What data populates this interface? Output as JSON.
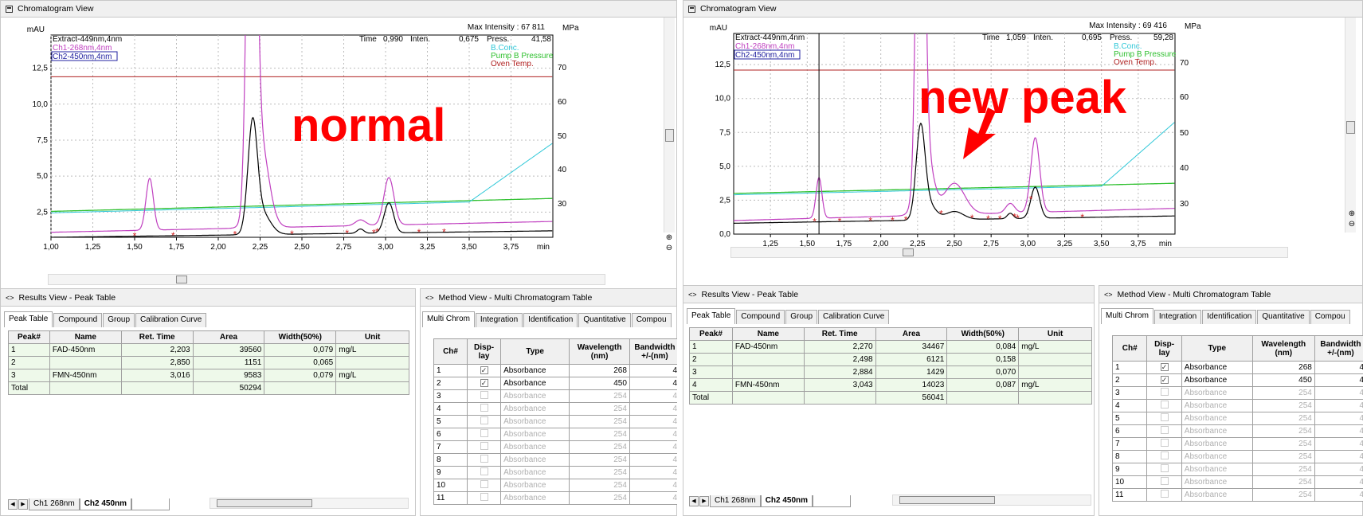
{
  "left": {
    "chrom_title": "Chromatogram View",
    "y_unit": "mAU",
    "legend": [
      "Extract-449nm,4nm",
      "Ch1-268nm,4nm",
      "Ch2-450nm,4nm"
    ],
    "legend_right": [
      "B.Conc.",
      "Pump B Pressure",
      "Oven Temp."
    ],
    "readout": {
      "time_label": "Time",
      "time": "0,990",
      "inten_label": "Inten.",
      "inten": "0,675",
      "press_label": "Press.",
      "press": "41,58"
    },
    "max_intensity": "Max Intensity :  67 811",
    "mpa": "MPa",
    "annotation": "normal",
    "results_title": "Results View - Peak Table",
    "tabs": [
      "Peak Table",
      "Compound",
      "Group",
      "Calibration Curve"
    ],
    "peak_headers": [
      "Peak#",
      "Name",
      "Ret. Time",
      "Area",
      "Width(50%)",
      "Unit"
    ],
    "peaks": [
      [
        "1",
        "FAD-450nm",
        "2,203",
        "39560",
        "0,079",
        "mg/L"
      ],
      [
        "2",
        "",
        "2,850",
        "1151",
        "0,065",
        ""
      ],
      [
        "3",
        "FMN-450nm",
        "3,016",
        "9583",
        "0,079",
        "mg/L"
      ],
      [
        "Total",
        "",
        "",
        "50294",
        "",
        ""
      ]
    ],
    "bottom_tabs": [
      "Ch1 268nm",
      "Ch2 450nm"
    ],
    "method_title": "Method View - Multi Chromatogram Table",
    "method_tabs": [
      "Multi Chrom",
      "Integration",
      "Identification",
      "Quantitative",
      "Compou"
    ]
  },
  "right": {
    "chrom_title": "Chromatogram View",
    "y_unit": "mAU",
    "legend": [
      "Extract-449nm,4nm",
      "Ch1-268nm,4nm",
      "Ch2-450nm,4nm"
    ],
    "legend_right": [
      "B.Conc.",
      "Pump B Pressure",
      "Oven Temp."
    ],
    "readout": {
      "time_label": "Time",
      "time": "1,059",
      "inten_label": "Inten.",
      "inten": "0,695",
      "press_label": "Press.",
      "press": "59,28"
    },
    "max_intensity": "Max Intensity :  69 416",
    "mpa": "MPa",
    "annotation": "new peak",
    "results_title": "Results View - Peak Table",
    "tabs": [
      "Peak Table",
      "Compound",
      "Group",
      "Calibration Curve"
    ],
    "peak_headers": [
      "Peak#",
      "Name",
      "Ret. Time",
      "Area",
      "Width(50%)",
      "Unit"
    ],
    "peaks": [
      [
        "1",
        "FAD-450nm",
        "2,270",
        "34467",
        "0,084",
        "mg/L"
      ],
      [
        "2",
        "",
        "2,498",
        "6121",
        "0,158",
        ""
      ],
      [
        "3",
        "",
        "2,884",
        "1429",
        "0,070",
        ""
      ],
      [
        "4",
        "FMN-450nm",
        "3,043",
        "14023",
        "0,087",
        "mg/L"
      ],
      [
        "Total",
        "",
        "",
        "56041",
        "",
        ""
      ]
    ],
    "bottom_tabs": [
      "Ch1 268nm",
      "Ch2 450nm"
    ],
    "method_title": "Method View - Multi Chromatogram Table",
    "method_tabs": [
      "Multi Chrom",
      "Integration",
      "Identification",
      "Quantitative",
      "Compou"
    ]
  },
  "method_headers": [
    "Ch#",
    "Disp-\nlay",
    "Type",
    "Wavelength\n(nm)",
    "Bandwidth\n+/-(nm)"
  ],
  "method_rows": [
    [
      "1",
      true,
      "Absorbance",
      "268",
      "4"
    ],
    [
      "2",
      true,
      "Absorbance",
      "450",
      "4"
    ],
    [
      "3",
      false,
      "Absorbance",
      "254",
      "4"
    ],
    [
      "4",
      false,
      "Absorbance",
      "254",
      "4"
    ],
    [
      "5",
      false,
      "Absorbance",
      "254",
      "4"
    ],
    [
      "6",
      false,
      "Absorbance",
      "254",
      "4"
    ],
    [
      "7",
      false,
      "Absorbance",
      "254",
      "4"
    ],
    [
      "8",
      false,
      "Absorbance",
      "254",
      "4"
    ],
    [
      "9",
      false,
      "Absorbance",
      "254",
      "4"
    ],
    [
      "10",
      false,
      "Absorbance",
      "254",
      "4"
    ],
    [
      "11",
      false,
      "Absorbance",
      "254",
      "4"
    ]
  ],
  "axis": {
    "left_y_ticks": [
      "2,5",
      "5,0",
      "7,5",
      "10,0",
      "12,5"
    ],
    "right_y_ticks": [
      "30",
      "40",
      "50",
      "60",
      "70"
    ],
    "left_x_ticks": [
      "1,00",
      "1,25",
      "1,50",
      "1,75",
      "2,00",
      "2,25",
      "2,50",
      "2,75",
      "3,00",
      "3,25",
      "3,50",
      "3,75"
    ],
    "right_x_ticks": [
      "1,25",
      "1,50",
      "1,75",
      "2,00",
      "2,25",
      "2,50",
      "2,75",
      "3,00",
      "3,25",
      "3,50",
      "3,75"
    ],
    "right_y0": "0,0",
    "x_unit": "min"
  },
  "colors": {
    "magenta": "#c040c0",
    "black": "#000000",
    "cyan": "#30c8d8",
    "green": "#30c030",
    "oven": "#b02020",
    "red": "#ff0000"
  }
}
